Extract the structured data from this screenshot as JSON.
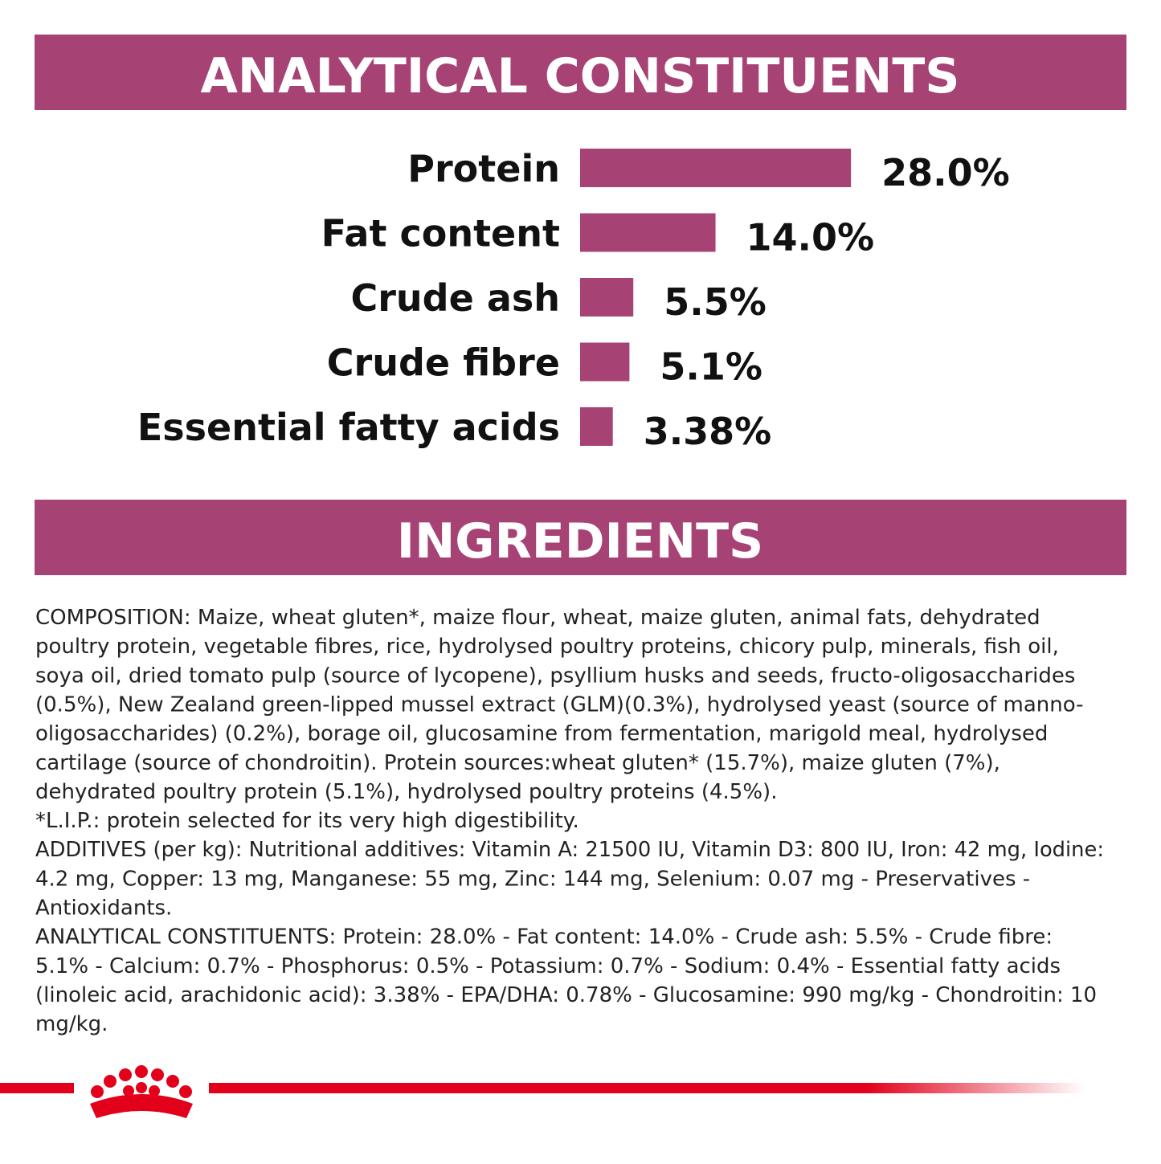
{
  "header": {
    "title": "ANALYTICAL CONSTITUENTS"
  },
  "chart_data": {
    "type": "bar",
    "categories": [
      "Protein",
      "Fat content",
      "Crude ash",
      "Crude fibre",
      "Essential fatty acids"
    ],
    "values": [
      28.0,
      14.0,
      5.5,
      5.1,
      3.38
    ],
    "value_labels": [
      "28.0%",
      "14.0%",
      "5.5%",
      "5.1%",
      "3.38%"
    ],
    "color": "#a64374"
  },
  "ingredients": {
    "title": "INGREDIENTS",
    "lines": [
      "COMPOSITION: Maize, wheat gluten*, maize flour, wheat, maize gluten, animal fats, dehydrated",
      "poultry protein, vegetable fibres, rice, hydrolysed poultry proteins, chicory pulp, minerals, fish oil,",
      "soya oil, dried tomato pulp (source of lycopene), psyllium husks and seeds, fructo-oligosaccharides",
      "(0.5%), New Zealand green-lipped mussel extract (GLM)(0.3%), hydrolysed yeast (source of manno-",
      "oligosaccharides) (0.2%), borage oil, glucosamine from fermentation, marigold meal, hydrolysed",
      "cartilage (source of chondroitin). Protein sources:wheat gluten* (15.7%), maize gluten (7%),",
      "dehydrated poultry protein (5.1%), hydrolysed poultry proteins (4.5%).",
      "*L.I.P.: protein selected for its very high digestibility.",
      "ADDITIVES (per kg): Nutritional additives: Vitamin A: 21500 IU, Vitamin D3: 800 IU, Iron: 42 mg, Iodine:",
      "4.2 mg, Copper: 13 mg, Manganese: 55 mg, Zinc: 144 mg, Selenium: 0.07 mg - Preservatives -",
      "Antioxidants.",
      "ANALYTICAL CONSTITUENTS: Protein: 28.0% - Fat content: 14.0% - Crude ash: 5.5% - Crude fibre:",
      "5.1% - Calcium: 0.7% - Phosphorus: 0.5% - Potassium: 0.7% - Sodium: 0.4% - Essential fatty acids",
      "(linoleic acid, arachidonic acid): 3.38% - EPA/DHA: 0.78% - Glucosamine: 990 mg/kg - Chondroitin: 10",
      "mg/kg."
    ]
  }
}
